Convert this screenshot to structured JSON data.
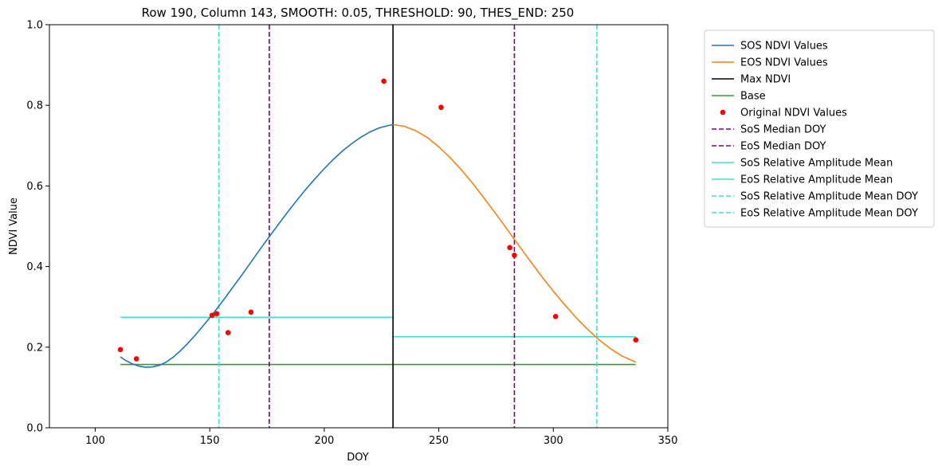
{
  "chart_data": {
    "type": "line",
    "title": "Row 190, Column 143, SMOOTH: 0.05, THRESHOLD: 90, THES_END: 250",
    "xlabel": "DOY",
    "ylabel": "NDVI Value",
    "xlim": [
      80,
      350
    ],
    "ylim": [
      0.0,
      1.0
    ],
    "xticks": [
      100,
      150,
      200,
      250,
      300,
      350
    ],
    "yticks": [
      0.0,
      0.2,
      0.4,
      0.6,
      0.8,
      1.0
    ],
    "xtick_labels": [
      "100",
      "150",
      "200",
      "250",
      "300",
      "350"
    ],
    "ytick_labels": [
      "0.0",
      "0.2",
      "0.4",
      "0.6",
      "0.8",
      "1.0"
    ],
    "legend_position": "outside-right-top",
    "colors": {
      "sos": "#1f77b4",
      "eos": "#ff7f0e",
      "max": "#000000",
      "base": "#2ca02c",
      "points": "#ff0000",
      "median": "#800080",
      "amplitude": "#40e0d0"
    },
    "series": [
      {
        "name": "SOS NDVI Values",
        "style": "line",
        "x": [
          111,
          113,
          116,
          119,
          122,
          125,
          128,
          131,
          134,
          137,
          140,
          144,
          148,
          152,
          156,
          160,
          164,
          168,
          172,
          176,
          180,
          184,
          188,
          192,
          196,
          200,
          204,
          208,
          212,
          216,
          220,
          224,
          228,
          230
        ],
        "y": [
          0.176,
          0.168,
          0.159,
          0.153,
          0.15,
          0.151,
          0.155,
          0.163,
          0.175,
          0.19,
          0.207,
          0.232,
          0.259,
          0.287,
          0.317,
          0.348,
          0.379,
          0.411,
          0.443,
          0.474,
          0.505,
          0.535,
          0.564,
          0.592,
          0.618,
          0.643,
          0.666,
          0.687,
          0.705,
          0.721,
          0.734,
          0.744,
          0.75,
          0.752
        ]
      },
      {
        "name": "EOS NDVI Values",
        "style": "line",
        "x": [
          230,
          235,
          240,
          245,
          250,
          255,
          260,
          265,
          270,
          275,
          280,
          285,
          290,
          295,
          300,
          305,
          310,
          315,
          320,
          325,
          330,
          336
        ],
        "y": [
          0.752,
          0.748,
          0.737,
          0.72,
          0.697,
          0.67,
          0.639,
          0.605,
          0.568,
          0.53,
          0.491,
          0.452,
          0.413,
          0.375,
          0.339,
          0.305,
          0.273,
          0.244,
          0.218,
          0.196,
          0.178,
          0.163
        ]
      },
      {
        "name": "Max NDVI",
        "style": "vline",
        "x": 230
      },
      {
        "name": "Base",
        "style": "hline-segment",
        "y": 0.157,
        "x_range": [
          111,
          336
        ]
      },
      {
        "name": "Original NDVI Values",
        "style": "scatter",
        "x": [
          111,
          118,
          151,
          153,
          158,
          168,
          226,
          251,
          281,
          283,
          301,
          336
        ],
        "y": [
          0.194,
          0.171,
          0.279,
          0.283,
          0.236,
          0.287,
          0.86,
          0.795,
          0.447,
          0.428,
          0.276,
          0.218
        ]
      },
      {
        "name": "SoS Median DOY",
        "style": "vline-dashed",
        "x": 176
      },
      {
        "name": "EoS Median DOY",
        "style": "vline-dashed",
        "x": 283
      },
      {
        "name": "SoS Relative Amplitude Mean",
        "style": "hline-segment",
        "y": 0.274,
        "x_range": [
          111,
          230
        ]
      },
      {
        "name": "EoS Relative Amplitude Mean",
        "style": "hline-segment",
        "y": 0.226,
        "x_range": [
          230,
          336
        ]
      },
      {
        "name": "SoS Relative Amplitude Mean DOY",
        "style": "vline-dashed",
        "x": 154
      },
      {
        "name": "EoS Relative Amplitude Mean DOY",
        "style": "vline-dashed",
        "x": 319
      }
    ]
  }
}
